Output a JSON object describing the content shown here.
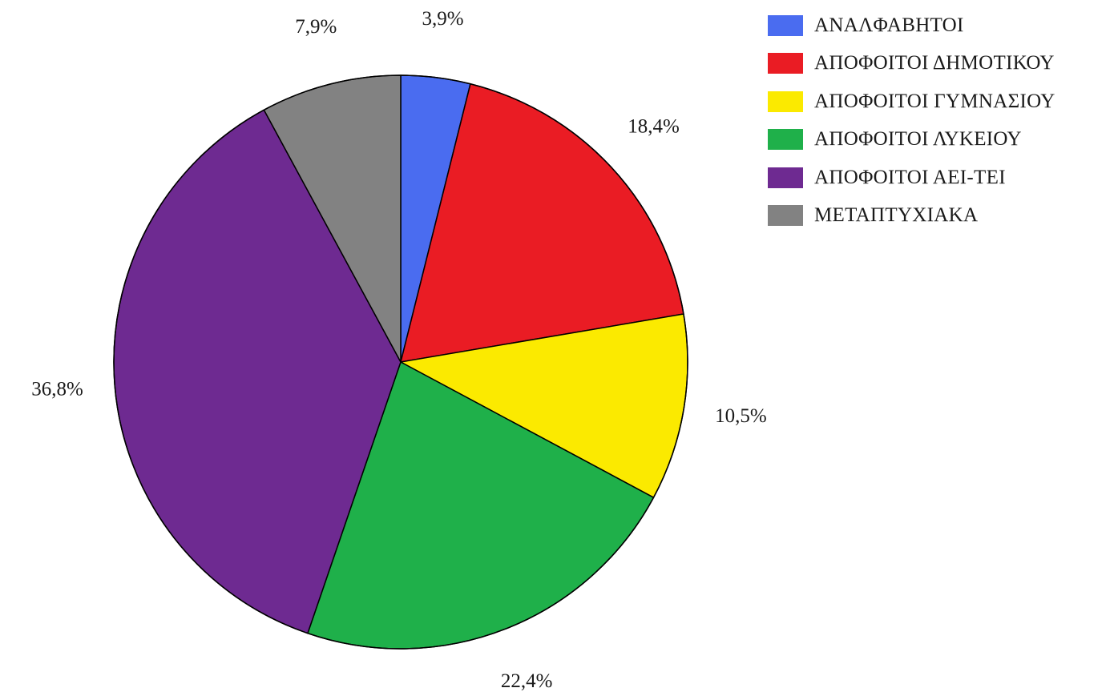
{
  "chart_data": {
    "type": "pie",
    "legend_position": "top-right",
    "slices": [
      {
        "label": "ΑΝΑΛΦΑΒΗΤΟΙ",
        "value": 3.9,
        "display": "3,9%",
        "color": "#4a6cf0"
      },
      {
        "label": "ΑΠΟΦΟΙΤΟΙ ΔΗΜΟΤΙΚΟΥ",
        "value": 18.4,
        "display": "18,4%",
        "color": "#ea1c24"
      },
      {
        "label": "ΑΠΟΦΟΙΤΟΙ ΓΥΜΝΑΣΙΟΥ",
        "value": 10.5,
        "display": "10,5%",
        "color": "#fbea00"
      },
      {
        "label": "ΑΠΟΦΟΙΤΟΙ ΛΥΚΕΙΟΥ",
        "value": 22.4,
        "display": "22,4%",
        "color": "#1fb04a"
      },
      {
        "label": "ΑΠΟΦΟΙΤΟΙ ΑΕΙ-ΤΕΙ",
        "value": 36.8,
        "display": "36,8%",
        "color": "#6e2a91"
      },
      {
        "label": "ΜΕΤΑΠΤΥΧΙΑΚΑ",
        "value": 7.9,
        "display": "7,9%",
        "color": "#828282"
      }
    ]
  }
}
